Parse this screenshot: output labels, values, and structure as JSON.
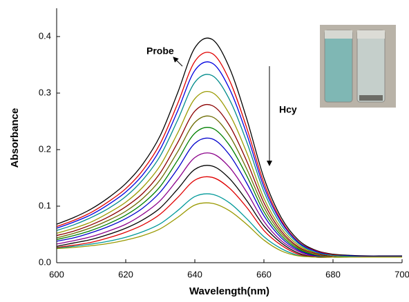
{
  "chart_data": {
    "type": "line",
    "xlabel": "Wavelength(nm)",
    "ylabel": "Absorbance",
    "annotations": [
      "Probe",
      "Hcy"
    ],
    "x": [
      600,
      605,
      610,
      615,
      620,
      625,
      630,
      635,
      640,
      645,
      650,
      655,
      660,
      665,
      670,
      675,
      680,
      685,
      690,
      695,
      700
    ],
    "xlim": [
      600,
      700
    ],
    "xticks": [
      600,
      620,
      640,
      660,
      680,
      700
    ],
    "ylim": [
      0,
      0.45
    ],
    "yticks": [
      {
        "value": 0,
        "label": "0.0"
      },
      0.1,
      0.2,
      0.3,
      0.4
    ],
    "series": [
      {
        "color": "#000000",
        "values": [
          0.068,
          0.08,
          0.095,
          0.115,
          0.14,
          0.175,
          0.225,
          0.3,
          0.38,
          0.395,
          0.345,
          0.255,
          0.15,
          0.08,
          0.04,
          0.022,
          0.015,
          0.013,
          0.012,
          0.012,
          0.012
        ]
      },
      {
        "color": "#e00000",
        "values": [
          0.064,
          0.075,
          0.089,
          0.108,
          0.131,
          0.164,
          0.211,
          0.281,
          0.356,
          0.37,
          0.323,
          0.239,
          0.141,
          0.075,
          0.037,
          0.021,
          0.014,
          0.012,
          0.011,
          0.011,
          0.011
        ]
      },
      {
        "color": "#0000e0",
        "values": [
          0.061,
          0.072,
          0.085,
          0.103,
          0.125,
          0.156,
          0.201,
          0.268,
          0.34,
          0.353,
          0.308,
          0.228,
          0.134,
          0.072,
          0.036,
          0.02,
          0.013,
          0.012,
          0.011,
          0.011,
          0.011
        ]
      },
      {
        "color": "#008b8b",
        "values": [
          0.057,
          0.067,
          0.08,
          0.096,
          0.117,
          0.147,
          0.189,
          0.252,
          0.319,
          0.331,
          0.289,
          0.214,
          0.126,
          0.067,
          0.034,
          0.018,
          0.013,
          0.011,
          0.01,
          0.01,
          0.01
        ]
      },
      {
        "color": "#9a9a00",
        "values": [
          0.052,
          0.061,
          0.072,
          0.088,
          0.107,
          0.134,
          0.172,
          0.229,
          0.29,
          0.301,
          0.263,
          0.195,
          0.114,
          0.061,
          0.031,
          0.017,
          0.011,
          0.01,
          0.01,
          0.01,
          0.01
        ]
      },
      {
        "color": "#8b0000",
        "values": [
          0.048,
          0.056,
          0.067,
          0.081,
          0.099,
          0.123,
          0.159,
          0.212,
          0.268,
          0.278,
          0.243,
          0.18,
          0.106,
          0.056,
          0.028,
          0.016,
          0.011,
          0.01,
          0.01,
          0.01,
          0.01
        ]
      },
      {
        "color": "#6b6b00",
        "values": [
          0.044,
          0.052,
          0.062,
          0.075,
          0.091,
          0.114,
          0.147,
          0.196,
          0.248,
          0.258,
          0.225,
          0.166,
          0.098,
          0.052,
          0.026,
          0.014,
          0.01,
          0.01,
          0.01,
          0.01,
          0.01
        ]
      },
      {
        "color": "#008000",
        "values": [
          0.041,
          0.048,
          0.057,
          0.069,
          0.084,
          0.105,
          0.135,
          0.181,
          0.229,
          0.238,
          0.208,
          0.154,
          0.09,
          0.048,
          0.024,
          0.013,
          0.01,
          0.01,
          0.01,
          0.01,
          0.01
        ]
      },
      {
        "color": "#0000cc",
        "values": [
          0.038,
          0.044,
          0.053,
          0.064,
          0.078,
          0.097,
          0.125,
          0.166,
          0.211,
          0.219,
          0.191,
          0.141,
          0.083,
          0.044,
          0.022,
          0.012,
          0.01,
          0.01,
          0.01,
          0.01,
          0.01
        ]
      },
      {
        "color": "#8b008b",
        "values": [
          0.033,
          0.039,
          0.046,
          0.056,
          0.068,
          0.086,
          0.11,
          0.147,
          0.186,
          0.193,
          0.169,
          0.125,
          0.073,
          0.039,
          0.02,
          0.011,
          0.01,
          0.01,
          0.01,
          0.01,
          0.01
        ]
      },
      {
        "color": "#000000",
        "values": [
          0.029,
          0.035,
          0.041,
          0.05,
          0.061,
          0.076,
          0.097,
          0.13,
          0.165,
          0.171,
          0.149,
          0.11,
          0.065,
          0.035,
          0.017,
          0.01,
          0.01,
          0.01,
          0.01,
          0.01,
          0.01
        ]
      },
      {
        "color": "#e00000",
        "values": [
          0.027,
          0.031,
          0.036,
          0.044,
          0.054,
          0.067,
          0.086,
          0.115,
          0.146,
          0.151,
          0.132,
          0.098,
          0.057,
          0.031,
          0.015,
          0.01,
          0.01,
          0.01,
          0.01,
          0.01,
          0.01
        ]
      },
      {
        "color": "#009999",
        "values": [
          0.026,
          0.029,
          0.033,
          0.038,
          0.045,
          0.055,
          0.069,
          0.092,
          0.117,
          0.121,
          0.106,
          0.078,
          0.046,
          0.025,
          0.013,
          0.01,
          0.01,
          0.01,
          0.01,
          0.01,
          0.01
        ]
      },
      {
        "color": "#999900",
        "values": [
          0.025,
          0.027,
          0.03,
          0.034,
          0.04,
          0.048,
          0.06,
          0.08,
          0.102,
          0.105,
          0.092,
          0.068,
          0.04,
          0.021,
          0.012,
          0.01,
          0.01,
          0.01,
          0.01,
          0.01,
          0.01
        ]
      }
    ]
  }
}
